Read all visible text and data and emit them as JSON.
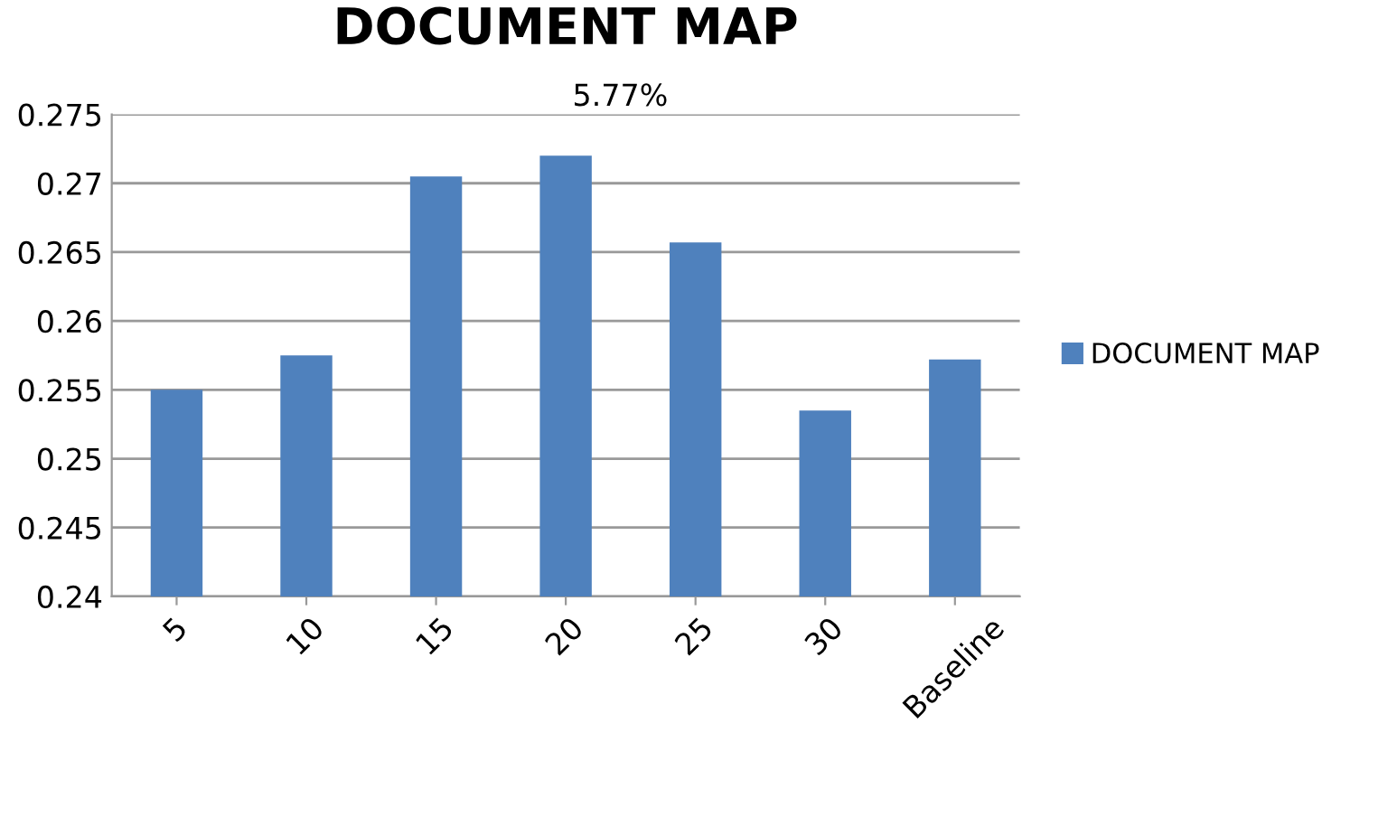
{
  "chart_data": {
    "type": "bar",
    "title": "DOCUMENT MAP",
    "categories": [
      "5",
      "10",
      "15",
      "20",
      "25",
      "30",
      "Baseline"
    ],
    "series": [
      {
        "name": "DOCUMENT MAP",
        "color": "#4f81bd",
        "values": [
          0.255,
          0.2575,
          0.2705,
          0.272,
          0.2657,
          0.2535,
          0.2572
        ]
      }
    ],
    "ylim": [
      0.24,
      0.275
    ],
    "yticks": [
      0.24,
      0.245,
      0.25,
      0.255,
      0.26,
      0.265,
      0.27,
      0.275
    ],
    "grid": "y",
    "legend": "right",
    "annotations": [
      "5.77%"
    ]
  }
}
